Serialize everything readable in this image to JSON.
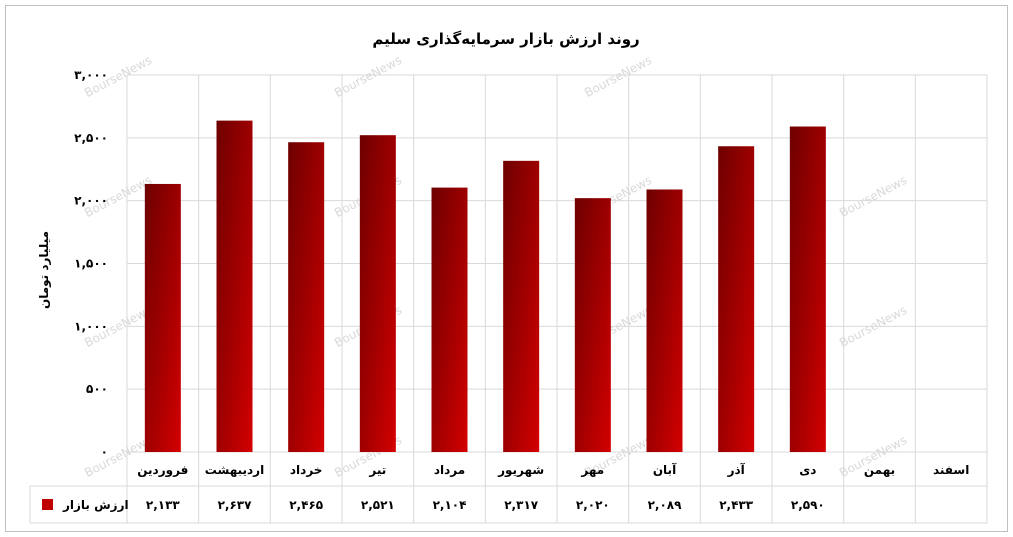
{
  "chart_data": {
    "type": "bar",
    "title": "روند ارزش بازار سرمایه‌گذاری سلیم",
    "ylabel": "میلیارد تومان",
    "ylim": [
      0,
      3000
    ],
    "yticks": [
      0,
      500,
      1000,
      1500,
      2000,
      2500,
      3000
    ],
    "ytick_labels": [
      "۰",
      "۵۰۰",
      "۱,۰۰۰",
      "۱,۵۰۰",
      "۲,۰۰۰",
      "۲,۵۰۰",
      "۳,۰۰۰"
    ],
    "categories": [
      "فروردین",
      "اردیبهشت",
      "خرداد",
      "تیر",
      "مرداد",
      "شهریور",
      "مهر",
      "آبان",
      "آذر",
      "دی",
      "بهمن",
      "اسفند"
    ],
    "series": [
      {
        "name": "ارزش بازار",
        "values": [
          2133,
          2637,
          2465,
          2521,
          2104,
          2317,
          2020,
          2089,
          2433,
          2590,
          null,
          null
        ],
        "value_labels": [
          "۲,۱۳۳",
          "۲,۶۳۷",
          "۲,۴۶۵",
          "۲,۵۲۱",
          "۲,۱۰۴",
          "۲,۳۱۷",
          "۲,۰۲۰",
          "۲,۰۸۹",
          "۲,۴۳۳",
          "۲,۵۹۰",
          "",
          ""
        ],
        "color": "#c00000"
      }
    ],
    "grid": true,
    "data_table": true,
    "watermark": "BourseNews"
  }
}
